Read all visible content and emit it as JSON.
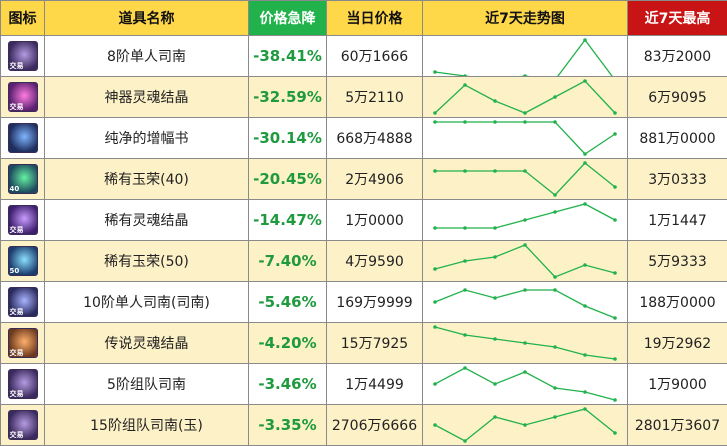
{
  "columns": {
    "icon": "图标",
    "name": "道具名称",
    "drop": "价格急降",
    "price": "当日价格",
    "trend": "近7天走势图",
    "max": "近7天最高"
  },
  "colors": {
    "header_bg": "#ffd84a",
    "drop_header_bg": "#22b24c",
    "max_header_bg": "#c81414",
    "drop_text": "#1f9a3e",
    "trend_line": "#22b24c",
    "row_alt_bg": "#fdf1c7"
  },
  "rows": [
    {
      "icon": "item-8-solo-compass-icon",
      "icon_tag": "交易",
      "icon_bg": "#3b2a5e",
      "icon_accent": "#b59be0",
      "name": "8阶单人司南",
      "drop": "-38.41%",
      "price": "60万1666",
      "max": "83万2000",
      "trend": [
        5,
        5.5,
        6,
        5.5,
        6,
        1,
        6
      ]
    },
    {
      "icon": "divine-soul-crystal-icon",
      "icon_tag": "交易",
      "icon_bg": "#5a1f6e",
      "icon_accent": "#ff7ce0",
      "name": "神器灵魂结晶",
      "drop": "-32.59%",
      "price": "5万2110",
      "max": "6万9095",
      "trend": [
        5,
        1.5,
        3.5,
        5,
        3,
        1,
        5
      ]
    },
    {
      "icon": "pure-amplify-book-icon",
      "icon_tag": "",
      "icon_bg": "#1e2e5e",
      "icon_accent": "#7fb5ff",
      "name": "纯净的增幅书",
      "drop": "-30.14%",
      "price": "668万4888",
      "max": "881万0000",
      "trend": [
        1,
        1,
        1,
        1,
        1,
        5,
        2.5
      ]
    },
    {
      "icon": "rare-jade-40-icon",
      "icon_tag": "40",
      "icon_bg": "#1c4a5e",
      "icon_accent": "#66f0a0",
      "name": "稀有玉荣(40)",
      "drop": "-20.45%",
      "price": "2万4906",
      "max": "3万0333",
      "trend": [
        2,
        2,
        2,
        2,
        5,
        1,
        4
      ]
    },
    {
      "icon": "rare-soul-crystal-icon",
      "icon_tag": "交易",
      "icon_bg": "#3e1f6e",
      "icon_accent": "#c89cff",
      "name": "稀有灵魂结晶",
      "drop": "-14.47%",
      "price": "1万0000",
      "max": "1万1447",
      "trend": [
        4,
        4,
        4,
        3,
        2,
        1,
        3
      ]
    },
    {
      "icon": "rare-jade-50-icon",
      "icon_tag": "50",
      "icon_bg": "#1c3e6e",
      "icon_accent": "#8adfff",
      "name": "稀有玉荣(50)",
      "drop": "-7.40%",
      "price": "4万9590",
      "max": "5万9333",
      "trend": [
        4,
        3,
        2.5,
        1,
        5,
        3.5,
        4.5
      ]
    },
    {
      "icon": "item-10-solo-compass-icon",
      "icon_tag": "交易",
      "icon_bg": "#2a2a5e",
      "icon_accent": "#a9b4ff",
      "name": "10阶单人司南(司南)",
      "drop": "-5.46%",
      "price": "169万9999",
      "max": "188万0000",
      "trend": [
        3,
        1.5,
        2.5,
        1.5,
        1.5,
        3.5,
        5
      ]
    },
    {
      "icon": "legend-soul-crystal-icon",
      "icon_tag": "交易",
      "icon_bg": "#6e3a1f",
      "icon_accent": "#ffb06b",
      "name": "传说灵魂结晶",
      "drop": "-4.20%",
      "price": "15万7925",
      "max": "19万2962",
      "trend": [
        1,
        2,
        2.5,
        3,
        3.5,
        4.5,
        5
      ]
    },
    {
      "icon": "item-5-party-compass-icon",
      "icon_tag": "交易",
      "icon_bg": "#3b2a5e",
      "icon_accent": "#b59be0",
      "name": "5阶组队司南",
      "drop": "-3.46%",
      "price": "1万4499",
      "max": "1万9000",
      "trend": [
        3,
        1,
        3,
        1.5,
        3.5,
        4,
        5
      ]
    },
    {
      "icon": "item-15-party-compass-icon",
      "icon_tag": "交易",
      "icon_bg": "#3b2a5e",
      "icon_accent": "#b59be0",
      "name": "15阶组队司南(玉)",
      "drop": "-3.35%",
      "price": "2706万6666",
      "max": "2801万3607",
      "trend": [
        3,
        5,
        2,
        3,
        2,
        1,
        4
      ]
    }
  ]
}
